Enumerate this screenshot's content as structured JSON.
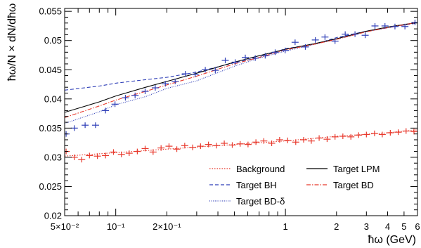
{
  "chart_data": {
    "type": "line",
    "title": "",
    "xlabel": "ħω (GeV)",
    "ylabel": "ħω/N × dN/dħω",
    "x_scale": "log",
    "xlim": [
      0.05,
      6
    ],
    "ylim": [
      0.02,
      0.0555
    ],
    "grid": false,
    "legend_placement": "bottom-right",
    "x_tick_labels": [
      {
        "x": 0.05,
        "label": "5×10⁻²"
      },
      {
        "x": 0.1,
        "label": "10⁻¹"
      },
      {
        "x": 0.2,
        "label": "2×10⁻¹"
      },
      {
        "x": 1,
        "label": "1"
      },
      {
        "x": 2,
        "label": "2"
      },
      {
        "x": 3,
        "label": "3"
      },
      {
        "x": 4,
        "label": "4"
      },
      {
        "x": 5,
        "label": "5"
      },
      {
        "x": 6,
        "label": "6"
      }
    ],
    "y_tick_labels": [
      "0.02",
      "0.025",
      "0.03",
      "0.035",
      "0.04",
      "0.045",
      "0.05",
      "0.055"
    ],
    "series": [
      {
        "name": "Background",
        "kind": "line",
        "color": "#e8392c",
        "dash": "dotted",
        "x": [
          0.05,
          0.1,
          0.2,
          0.5,
          1,
          2,
          4,
          6
        ],
        "y": [
          0.0302,
          0.0308,
          0.0314,
          0.0322,
          0.0328,
          0.0336,
          0.0342,
          0.0347
        ]
      },
      {
        "name": "Target BH",
        "kind": "line",
        "color": "#2f3fb7",
        "dash": "dashed",
        "x": [
          0.05,
          0.08,
          0.1,
          0.15,
          0.2,
          0.3,
          0.5,
          0.7,
          1,
          1.5,
          2,
          3,
          4,
          6
        ],
        "y": [
          0.0415,
          0.0422,
          0.0427,
          0.0433,
          0.0437,
          0.0446,
          0.0462,
          0.0471,
          0.0486,
          0.0494,
          0.0505,
          0.0516,
          0.0522,
          0.053
        ]
      },
      {
        "name": "Target BD-δ",
        "kind": "line",
        "color": "#2f3fb7",
        "dash": "densedot",
        "x": [
          0.05,
          0.08,
          0.1,
          0.15,
          0.2,
          0.3,
          0.5,
          0.7,
          1,
          1.5,
          2,
          3,
          4,
          6
        ],
        "y": [
          0.0358,
          0.0378,
          0.039,
          0.0404,
          0.0418,
          0.0431,
          0.0456,
          0.047,
          0.0482,
          0.0494,
          0.0502,
          0.0515,
          0.0522,
          0.0531
        ]
      },
      {
        "name": "Target LPM",
        "kind": "line",
        "color": "#000000",
        "dash": "solid",
        "x": [
          0.05,
          0.08,
          0.1,
          0.15,
          0.2,
          0.3,
          0.5,
          0.7,
          1,
          1.5,
          2,
          3,
          4,
          6
        ],
        "y": [
          0.0377,
          0.0395,
          0.0405,
          0.042,
          0.043,
          0.0444,
          0.0463,
          0.0474,
          0.0485,
          0.0495,
          0.0503,
          0.0516,
          0.0523,
          0.0531
        ]
      },
      {
        "name": "Target BD",
        "kind": "line",
        "color": "#e8392c",
        "dash": "dashdot",
        "x": [
          0.05,
          0.08,
          0.1,
          0.15,
          0.2,
          0.3,
          0.5,
          0.7,
          1,
          1.5,
          2,
          3,
          4,
          6
        ],
        "y": [
          0.0368,
          0.0388,
          0.0398,
          0.0413,
          0.0424,
          0.0439,
          0.046,
          0.0471,
          0.0484,
          0.0494,
          0.0502,
          0.0515,
          0.0522,
          0.0531
        ]
      },
      {
        "name": "",
        "kind": "points",
        "color": "#e8392c",
        "x": [
          0.051,
          0.057,
          0.063,
          0.07,
          0.078,
          0.087,
          0.097,
          0.108,
          0.12,
          0.134,
          0.149,
          0.166,
          0.185,
          0.206,
          0.229,
          0.255,
          0.284,
          0.316,
          0.352,
          0.392,
          0.436,
          0.486,
          0.541,
          0.602,
          0.67,
          0.746,
          0.83,
          0.924,
          1.03,
          1.15,
          1.28,
          1.42,
          1.58,
          1.76,
          1.96,
          2.18,
          2.43,
          2.7,
          3.0,
          3.35,
          3.72,
          4.15,
          4.62,
          5.14,
          5.72
        ],
        "y": [
          0.031,
          0.03,
          0.0296,
          0.0303,
          0.0302,
          0.0303,
          0.0309,
          0.0305,
          0.0307,
          0.031,
          0.0315,
          0.0309,
          0.0316,
          0.0319,
          0.0314,
          0.032,
          0.0317,
          0.0319,
          0.0322,
          0.032,
          0.0324,
          0.0321,
          0.0323,
          0.0322,
          0.0326,
          0.0328,
          0.0324,
          0.033,
          0.0329,
          0.0326,
          0.033,
          0.0328,
          0.0333,
          0.0331,
          0.0335,
          0.0336,
          0.0335,
          0.0338,
          0.0339,
          0.0341,
          0.0339,
          0.0342,
          0.0343,
          0.0345,
          0.0344
        ]
      },
      {
        "name": "",
        "kind": "points",
        "color": "#2f3fb7",
        "x": [
          0.051,
          0.057,
          0.066,
          0.076,
          0.087,
          0.099,
          0.114,
          0.13,
          0.149,
          0.171,
          0.196,
          0.224,
          0.257,
          0.294,
          0.337,
          0.386,
          0.442,
          0.506,
          0.58,
          0.664,
          0.76,
          0.87,
          0.996,
          1.14,
          1.31,
          1.5,
          1.71,
          1.96,
          2.25,
          2.57,
          2.95,
          3.37,
          3.86,
          4.42,
          5.06,
          5.8
        ],
        "y": [
          0.034,
          0.035,
          0.0355,
          0.0355,
          0.038,
          0.0391,
          0.0402,
          0.0406,
          0.0413,
          0.0419,
          0.0426,
          0.043,
          0.0443,
          0.0442,
          0.045,
          0.0449,
          0.0466,
          0.0463,
          0.0471,
          0.047,
          0.0474,
          0.048,
          0.0483,
          0.0497,
          0.0489,
          0.0501,
          0.0506,
          0.0499,
          0.0511,
          0.0511,
          0.0509,
          0.0525,
          0.0525,
          0.0524,
          0.0524,
          0.0531
        ]
      }
    ]
  }
}
